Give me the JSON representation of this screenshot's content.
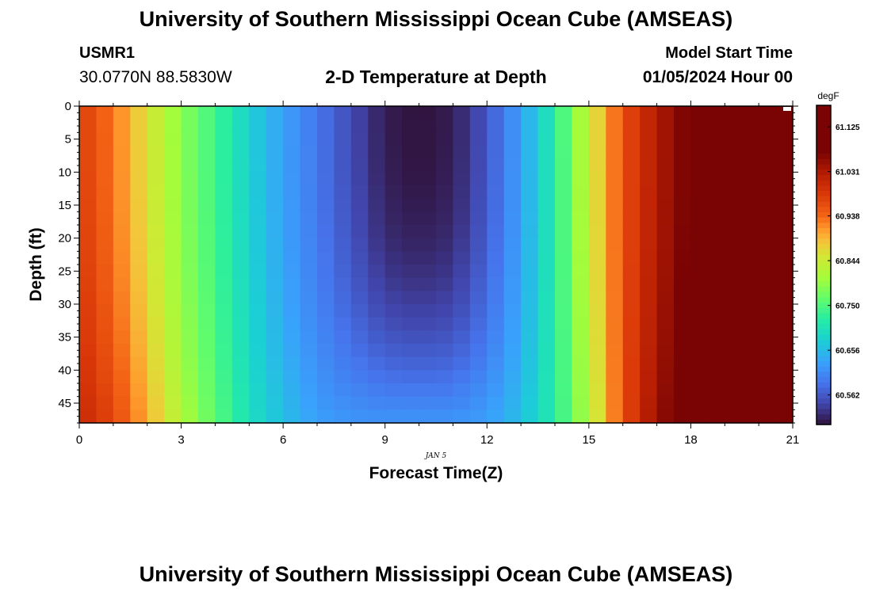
{
  "header": {
    "title": "University of Southern Mississippi Ocean Cube (AMSEAS)",
    "station_id": "USMR1",
    "coordinates": "30.0770N  88.5830W",
    "plot_title": "2-D Temperature at Depth",
    "model_start_label": "Model Start Time",
    "model_start_value": "01/05/2024 Hour 00"
  },
  "footer": {
    "title": "University of Southern Mississippi Ocean Cube (AMSEAS)"
  },
  "chart_data": {
    "type": "heatmap",
    "title": "2-D Temperature at Depth",
    "xlabel": "Forecast Time(Z)",
    "ylabel": "Depth (ft)",
    "x_sublabel": "JAN 5",
    "xlim": [
      0,
      21
    ],
    "ylim": [
      0,
      48
    ],
    "xticks": [
      0,
      3,
      6,
      9,
      12,
      15,
      18,
      21
    ],
    "yticks": [
      0,
      5,
      10,
      15,
      20,
      25,
      30,
      35,
      40,
      45
    ],
    "colorbar": {
      "units": "degF",
      "range": [
        60.5,
        61.17
      ],
      "tick_values": [
        61.125,
        61.031,
        60.938,
        60.844,
        60.75,
        60.656,
        60.562
      ],
      "tick_labels": [
        "61.125",
        "61.031",
        "60.938",
        "60.844",
        "60.750",
        "60.656",
        "60.562"
      ]
    },
    "columns": 42,
    "hourly_surface_temps": [
      60.98,
      60.93,
      60.86,
      60.79,
      60.74,
      60.68,
      60.63,
      60.59,
      60.55,
      60.51,
      60.5,
      60.51,
      60.56,
      60.63,
      60.72,
      60.84,
      60.96,
      61.03,
      61.08,
      61.11,
      61.14,
      61.17
    ],
    "hourly_bottom_temps": [
      61.01,
      60.97,
      60.9,
      60.82,
      60.76,
      60.7,
      60.66,
      60.63,
      60.62,
      60.62,
      60.62,
      60.62,
      60.63,
      60.66,
      60.72,
      60.82,
      60.96,
      61.05,
      61.1,
      61.13,
      61.15,
      61.17
    ]
  }
}
